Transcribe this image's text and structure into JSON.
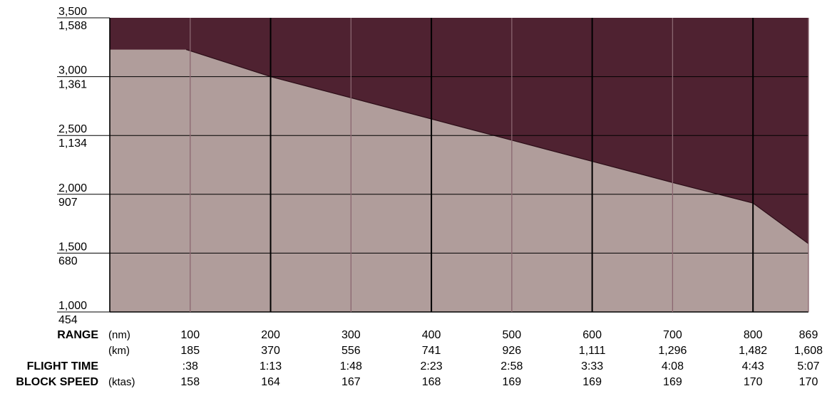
{
  "chart_data": {
    "type": "area",
    "y_ticks": [
      {
        "primary": "3,500",
        "secondary": "1,588",
        "value": 3500
      },
      {
        "primary": "3,000",
        "secondary": "1,361",
        "value": 3000
      },
      {
        "primary": "2,500",
        "secondary": "1,134",
        "value": 2500
      },
      {
        "primary": "2,000",
        "secondary": "907",
        "value": 2000
      },
      {
        "primary": "1,500",
        "secondary": "680",
        "value": 1500
      },
      {
        "primary": "1,000",
        "secondary": "454",
        "value": 1000
      }
    ],
    "ylim": [
      1000,
      3500
    ],
    "xlim": [
      0,
      869
    ],
    "grid": true,
    "x": [
      0,
      95,
      200,
      300,
      400,
      500,
      600,
      700,
      800,
      869
    ],
    "payload_capacity": [
      3230,
      3230,
      3000,
      2820,
      2640,
      2460,
      2280,
      2100,
      1925,
      1580
    ],
    "colors": {
      "upper_region": "#4f2231",
      "lower_region": "#b09d9b",
      "minor_grid": "#8a6670",
      "major_grid": "#000000"
    },
    "table": {
      "columns": [
        {
          "nm": "100",
          "km": "185",
          "time": ":38",
          "speed": "158"
        },
        {
          "nm": "200",
          "km": "370",
          "time": "1:13",
          "speed": "164"
        },
        {
          "nm": "300",
          "km": "556",
          "time": "1:48",
          "speed": "167"
        },
        {
          "nm": "400",
          "km": "741",
          "time": "2:23",
          "speed": "168"
        },
        {
          "nm": "500",
          "km": "926",
          "time": "2:58",
          "speed": "169"
        },
        {
          "nm": "600",
          "km": "1,111",
          "time": "3:33",
          "speed": "169"
        },
        {
          "nm": "700",
          "km": "1,296",
          "time": "4:08",
          "speed": "169"
        },
        {
          "nm": "800",
          "km": "1,482",
          "time": "4:43",
          "speed": "170"
        },
        {
          "nm": "869",
          "km": "1,608",
          "time": "5:07",
          "speed": "170"
        }
      ]
    }
  },
  "labels": {
    "range": "RANGE",
    "flight_time": "FLIGHT TIME",
    "block_speed": "BLOCK SPEED",
    "unit_nm": "(nm)",
    "unit_km": "(km)",
    "unit_ktas": "(ktas)"
  }
}
